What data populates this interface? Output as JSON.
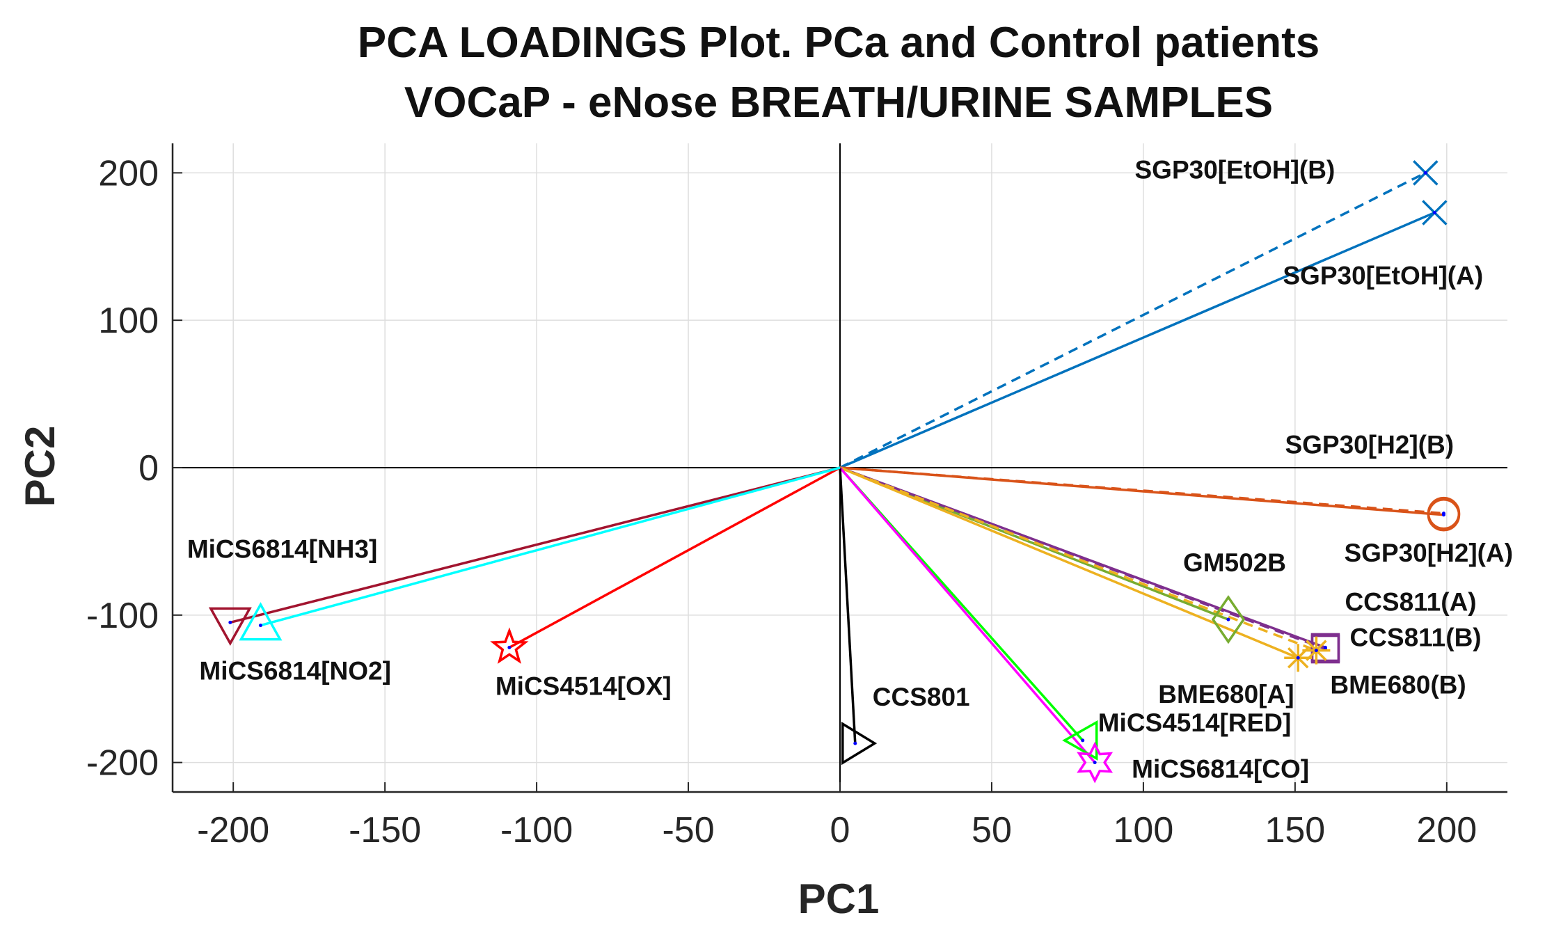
{
  "chart_data": {
    "type": "scatter",
    "title": [
      "PCA LOADINGS Plot. PCa and Control patients",
      "VOCaP - eNose BREATH/URINE SAMPLES"
    ],
    "xlabel": "PC1",
    "ylabel": "PC2",
    "xlim": [
      -220,
      220
    ],
    "ylim": [
      -220,
      220
    ],
    "xticks": [
      -200,
      -150,
      -100,
      -50,
      0,
      50,
      100,
      150,
      200
    ],
    "yticks": [
      -200,
      -100,
      0,
      100,
      200
    ],
    "xtick_labels": [
      "-200",
      "-150",
      "-100",
      "-50",
      "0",
      "50",
      "100",
      "150",
      "200"
    ],
    "ytick_labels": [
      "-200",
      "-100",
      "0",
      "100",
      "200"
    ],
    "grid": true,
    "origin_lines": true,
    "series": [
      {
        "name": "SGP30[EtOH](B)",
        "x": 193,
        "y": 200,
        "color": "#0072BD",
        "marker": "x",
        "line": "dashed"
      },
      {
        "name": "SGP30[EtOH](A)",
        "x": 196,
        "y": 173,
        "color": "#0072BD",
        "marker": "x",
        "line": "solid"
      },
      {
        "name": "SGP30[H2](B)",
        "x": 199,
        "y": -31,
        "color": "#D95319",
        "marker": "circle",
        "line": "dashed"
      },
      {
        "name": "SGP30[H2](A)",
        "x": 199,
        "y": -32,
        "color": "#D95319",
        "marker": "circle",
        "line": "solid"
      },
      {
        "name": "GM502B",
        "x": 128,
        "y": -103,
        "color": "#77AC30",
        "marker": "diamond",
        "line": "solid"
      },
      {
        "name": "CCS811(A)",
        "x": 160,
        "y": -122,
        "color": "#7E2F8E",
        "marker": "square",
        "line": "solid"
      },
      {
        "name": "CCS811(B)",
        "x": 160,
        "y": -123,
        "color": "#7E2F8E",
        "marker": "square",
        "line": "dashed"
      },
      {
        "name": "BME680[A]",
        "x": 151,
        "y": -129,
        "color": "#EDB120",
        "marker": "asterisk",
        "line": "solid"
      },
      {
        "name": "BME680(B)",
        "x": 157,
        "y": -124,
        "color": "#EDB120",
        "marker": "asterisk",
        "line": "dashed"
      },
      {
        "name": "MiCS4514[RED]",
        "x": 80,
        "y": -185,
        "color": "#00FF00",
        "marker": "triangle-left",
        "line": "solid"
      },
      {
        "name": "MiCS6814[CO]",
        "x": 84,
        "y": -200,
        "color": "#FF00FF",
        "marker": "hexagram",
        "line": "solid"
      },
      {
        "name": "CCS801",
        "x": 5,
        "y": -187,
        "color": "#000000",
        "marker": "triangle-right",
        "line": "solid"
      },
      {
        "name": "MiCS4514[OX]",
        "x": -109,
        "y": -122,
        "color": "#FF0000",
        "marker": "pentagram",
        "line": "solid"
      },
      {
        "name": "MiCS6814[NH3]",
        "x": -201,
        "y": -105,
        "color": "#A2142F",
        "marker": "triangle-down",
        "line": "solid"
      },
      {
        "name": "MiCS6814[NO2]",
        "x": -191,
        "y": -107,
        "color": "#00FFFF",
        "marker": "triangle-up",
        "line": "solid"
      }
    ]
  }
}
